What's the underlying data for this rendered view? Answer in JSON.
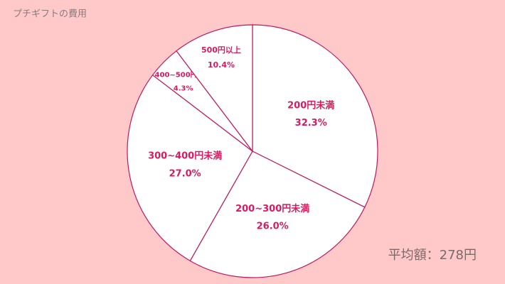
{
  "chart_data": {
    "type": "pie",
    "title": "プチギフトの費用",
    "categories": [
      "200円未満",
      "200~300円未満",
      "300~400円未満",
      "400~500円未満",
      "500円以上"
    ],
    "values": [
      32.3,
      26.0,
      27.0,
      4.3,
      10.4
    ],
    "value_labels": [
      "32.3%",
      "26.0%",
      "27.0%",
      "4.3%",
      "10.4%"
    ],
    "annotation": "平均額：278円"
  }
}
